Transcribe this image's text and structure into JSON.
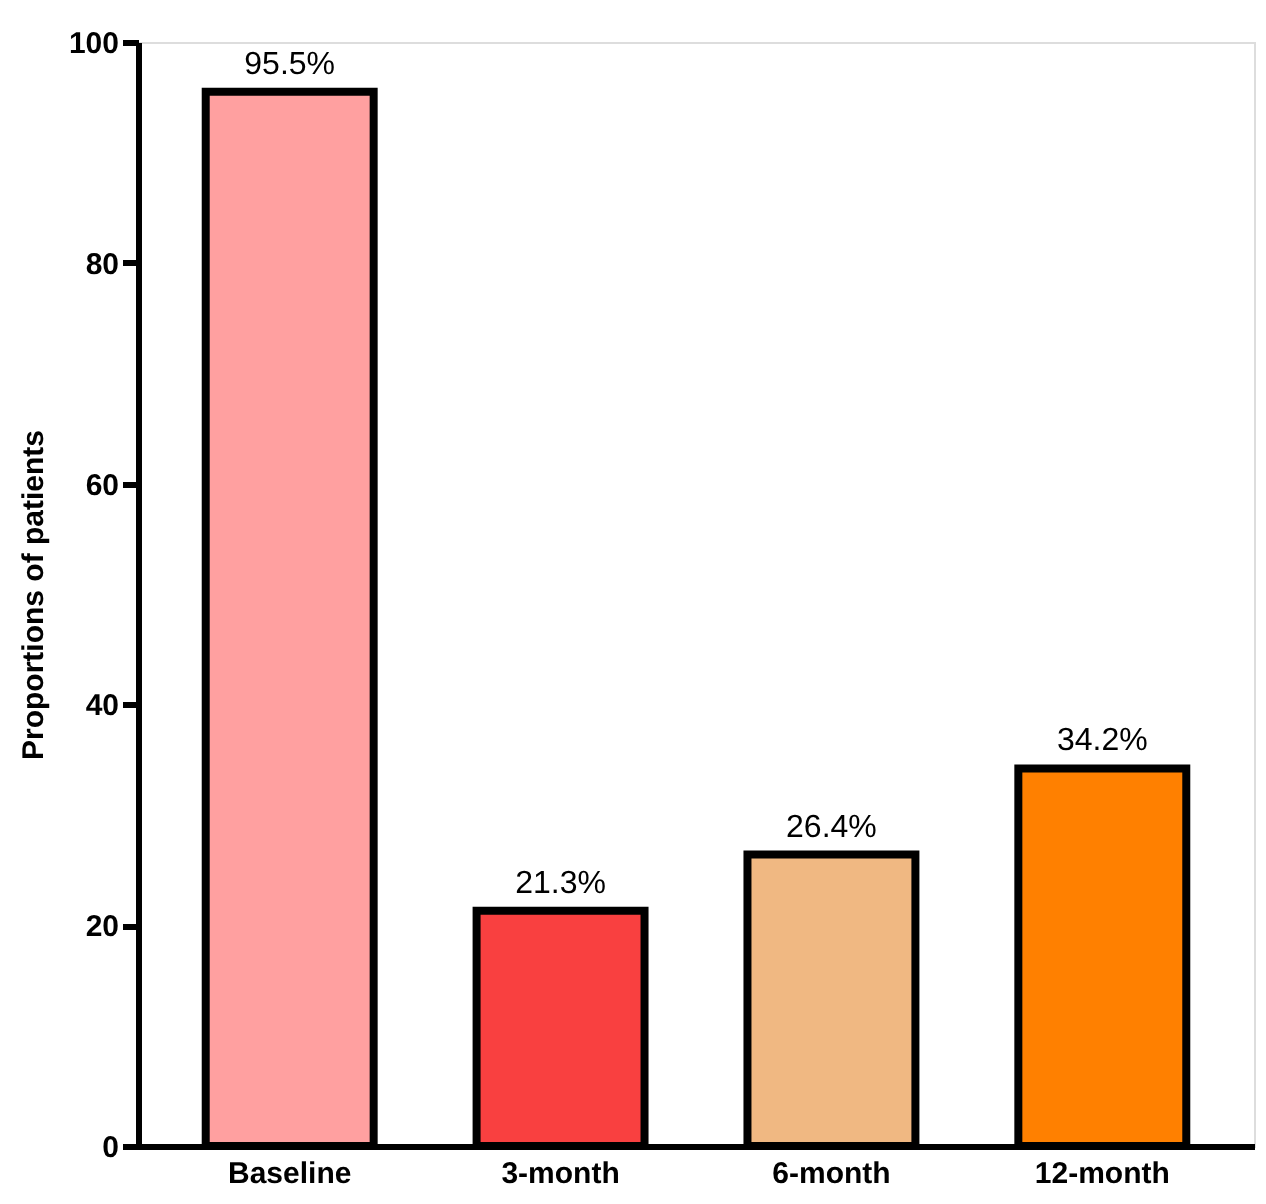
{
  "chart_data": {
    "type": "bar",
    "ylabel": "Proportions of patients",
    "categories": [
      "Baseline",
      "3-month",
      "6-month",
      "12-month"
    ],
    "values": [
      95.5,
      21.3,
      26.4,
      34.2
    ],
    "value_labels": [
      "95.5%",
      "21.3%",
      "26.4%",
      "34.2%"
    ],
    "colors": [
      "#ffa0a0",
      "#f94040",
      "#f0b882",
      "#ff8000"
    ],
    "ylim": [
      0,
      100
    ],
    "yticks": [
      0,
      20,
      40,
      60,
      80,
      100
    ],
    "grid": false,
    "legend": false
  }
}
